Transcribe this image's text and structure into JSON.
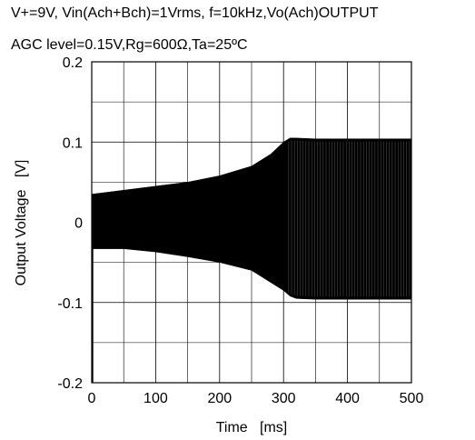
{
  "chart_data": {
    "type": "line",
    "title_lines": [
      "V+=9V, Vin(Ach+Bch)=1Vrms, f=10kHz,Vo(Ach)OUTPUT",
      "AGC level=0.15V,Rg=600Ω,Ta=25ºC"
    ],
    "xlabel": "Time   [ms]",
    "ylabel": "Output Voltage   [V]",
    "xlim": [
      0,
      500
    ],
    "ylim": [
      -0.2,
      0.2
    ],
    "x_ticks": [
      "0",
      "100",
      "200",
      "300",
      "400",
      "500"
    ],
    "y_ticks": [
      "0.2",
      "0.1",
      "0",
      "-0.1",
      "-0.2"
    ],
    "grid": true,
    "series": [
      {
        "envelope_x": [
          0,
          50,
          100,
          150,
          200,
          250,
          280,
          300,
          310,
          320,
          350,
          400,
          450,
          500
        ],
        "upper": [
          0.035,
          0.04,
          0.045,
          0.05,
          0.058,
          0.07,
          0.085,
          0.1,
          0.105,
          0.105,
          0.104,
          0.104,
          0.104,
          0.104
        ],
        "lower": [
          -0.033,
          -0.033,
          -0.037,
          -0.043,
          -0.05,
          -0.06,
          -0.075,
          -0.085,
          -0.092,
          -0.095,
          -0.096,
          -0.096,
          -0.096,
          -0.096
        ],
        "initial_spike_min": -0.2
      }
    ]
  }
}
